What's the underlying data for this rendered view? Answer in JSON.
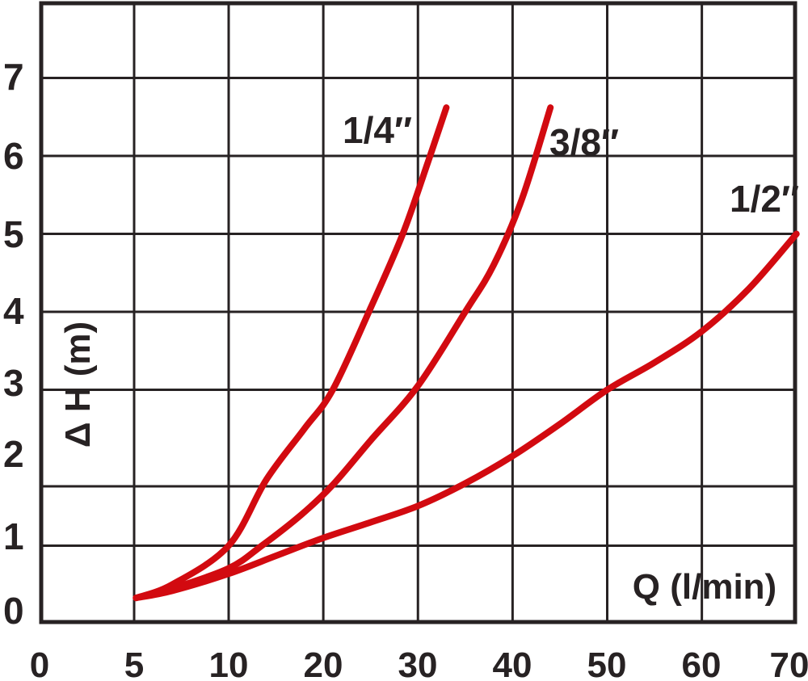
{
  "colors": {
    "background": "#ffffff",
    "grid": "#272223",
    "text": "#272223",
    "curve_red": "#d20a10"
  },
  "chart": {
    "y_axis_title": "Δ H (m)",
    "x_axis_title": "Q (l/min)",
    "y_tick_labels": [
      "7",
      "6",
      "5",
      "4",
      "3",
      "2",
      "1",
      "0"
    ],
    "x_tick_labels": [
      "0",
      "5",
      "10",
      "20",
      "30",
      "40",
      "50",
      "60",
      "70"
    ]
  },
  "chart_data": {
    "type": "line",
    "title": "",
    "xlabel": "Q (l/min)",
    "ylabel": "Δ H (m)",
    "x_ticks": [
      0,
      5,
      10,
      20,
      30,
      40,
      50,
      60,
      70
    ],
    "y_ticks": [
      0,
      1,
      2,
      3,
      4,
      5,
      6,
      7
    ],
    "x_range": [
      0,
      70
    ],
    "y_range": [
      0,
      8
    ],
    "grid": "on",
    "legend_position": "labels next to curves",
    "x_scale_note": "non-linear axis: divisions 0-5-10 then 10 per cell",
    "series": [
      {
        "name": "1/4″",
        "points": [
          [
            5.1,
            0.33
          ],
          [
            7,
            0.5
          ],
          [
            10,
            1.0
          ],
          [
            14,
            1.85
          ],
          [
            18,
            2.5
          ],
          [
            21,
            3.0
          ],
          [
            25,
            4.05
          ],
          [
            28.4,
            5.0
          ],
          [
            31,
            5.9
          ],
          [
            33,
            6.62
          ]
        ]
      },
      {
        "name": "3/8″",
        "points": [
          [
            5.1,
            0.33
          ],
          [
            7,
            0.45
          ],
          [
            10,
            0.71
          ],
          [
            13.5,
            1.0
          ],
          [
            17.7,
            1.4
          ],
          [
            21,
            1.78
          ],
          [
            25,
            2.35
          ],
          [
            30,
            3.05
          ],
          [
            35,
            4.0
          ],
          [
            38,
            4.6
          ],
          [
            41,
            5.45
          ],
          [
            44,
            6.62
          ]
        ]
      },
      {
        "name": "1/2″",
        "points": [
          [
            5.1,
            0.33
          ],
          [
            7,
            0.42
          ],
          [
            10,
            0.64
          ],
          [
            15,
            0.87
          ],
          [
            20,
            1.1
          ],
          [
            25,
            1.3
          ],
          [
            30,
            1.51
          ],
          [
            35,
            1.8
          ],
          [
            40,
            2.15
          ],
          [
            45,
            2.56
          ],
          [
            50,
            3.0
          ],
          [
            55,
            3.35
          ],
          [
            60,
            3.75
          ],
          [
            65,
            4.3
          ],
          [
            70,
            5.0
          ]
        ]
      }
    ]
  }
}
